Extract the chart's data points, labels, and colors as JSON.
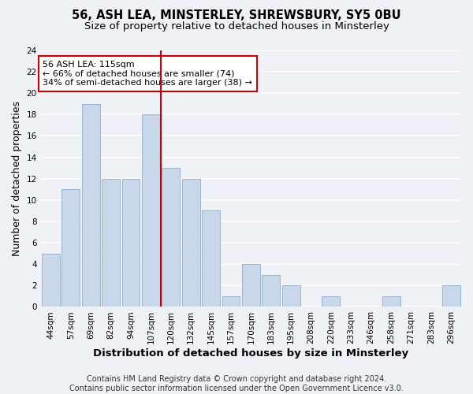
{
  "title": "56, ASH LEA, MINSTERLEY, SHREWSBURY, SY5 0BU",
  "subtitle": "Size of property relative to detached houses in Minsterley",
  "xlabel": "Distribution of detached houses by size in Minsterley",
  "ylabel": "Number of detached properties",
  "bar_color": "#c8d8ea",
  "bar_edgecolor": "#9ab4cc",
  "categories": [
    "44sqm",
    "57sqm",
    "69sqm",
    "82sqm",
    "94sqm",
    "107sqm",
    "120sqm",
    "132sqm",
    "145sqm",
    "157sqm",
    "170sqm",
    "183sqm",
    "195sqm",
    "208sqm",
    "220sqm",
    "233sqm",
    "246sqm",
    "258sqm",
    "271sqm",
    "283sqm",
    "296sqm"
  ],
  "values": [
    5,
    11,
    19,
    12,
    12,
    18,
    13,
    12,
    9,
    1,
    4,
    3,
    2,
    0,
    1,
    0,
    0,
    1,
    0,
    0,
    2
  ],
  "ylim": [
    0,
    24
  ],
  "yticks": [
    0,
    2,
    4,
    6,
    8,
    10,
    12,
    14,
    16,
    18,
    20,
    22,
    24
  ],
  "vline_x": 5.5,
  "vline_color": "#cc0000",
  "annotation_text": "56 ASH LEA: 115sqm\n← 66% of detached houses are smaller (74)\n34% of semi-detached houses are larger (38) →",
  "annotation_box_facecolor": "#ffffff",
  "annotation_box_edgecolor": "#cc0000",
  "footer_line1": "Contains HM Land Registry data © Crown copyright and database right 2024.",
  "footer_line2": "Contains public sector information licensed under the Open Government Licence v3.0.",
  "background_color": "#eef2f7",
  "grid_color": "#ffffff",
  "title_fontsize": 10.5,
  "subtitle_fontsize": 9.5,
  "axis_label_fontsize": 9,
  "tick_fontsize": 7.5,
  "annotation_fontsize": 8,
  "footer_fontsize": 7
}
